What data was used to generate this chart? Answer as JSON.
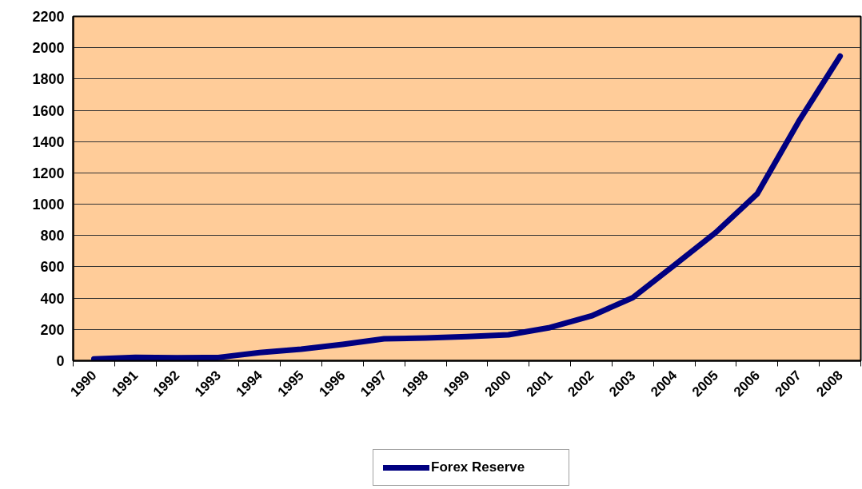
{
  "chart_data": {
    "type": "line",
    "categories": [
      "1990",
      "1991",
      "1992",
      "1993",
      "1994",
      "1995",
      "1996",
      "1997",
      "1998",
      "1999",
      "2000",
      "2001",
      "2002",
      "2003",
      "2004",
      "2005",
      "2006",
      "2007",
      "2008"
    ],
    "series": [
      {
        "name": "Forex Reserve",
        "color": "#000080",
        "values": [
          11,
          22,
          19,
          21,
          52,
          74,
          105,
          140,
          145,
          155,
          166,
          212,
          286,
          403,
          610,
          819,
          1066,
          1528,
          1946
        ]
      }
    ],
    "ylim": [
      0,
      2200
    ],
    "yticks": [
      0,
      200,
      400,
      600,
      800,
      1000,
      1200,
      1400,
      1600,
      1800,
      2000,
      2200
    ],
    "grid": "y",
    "legend": "bottom"
  }
}
